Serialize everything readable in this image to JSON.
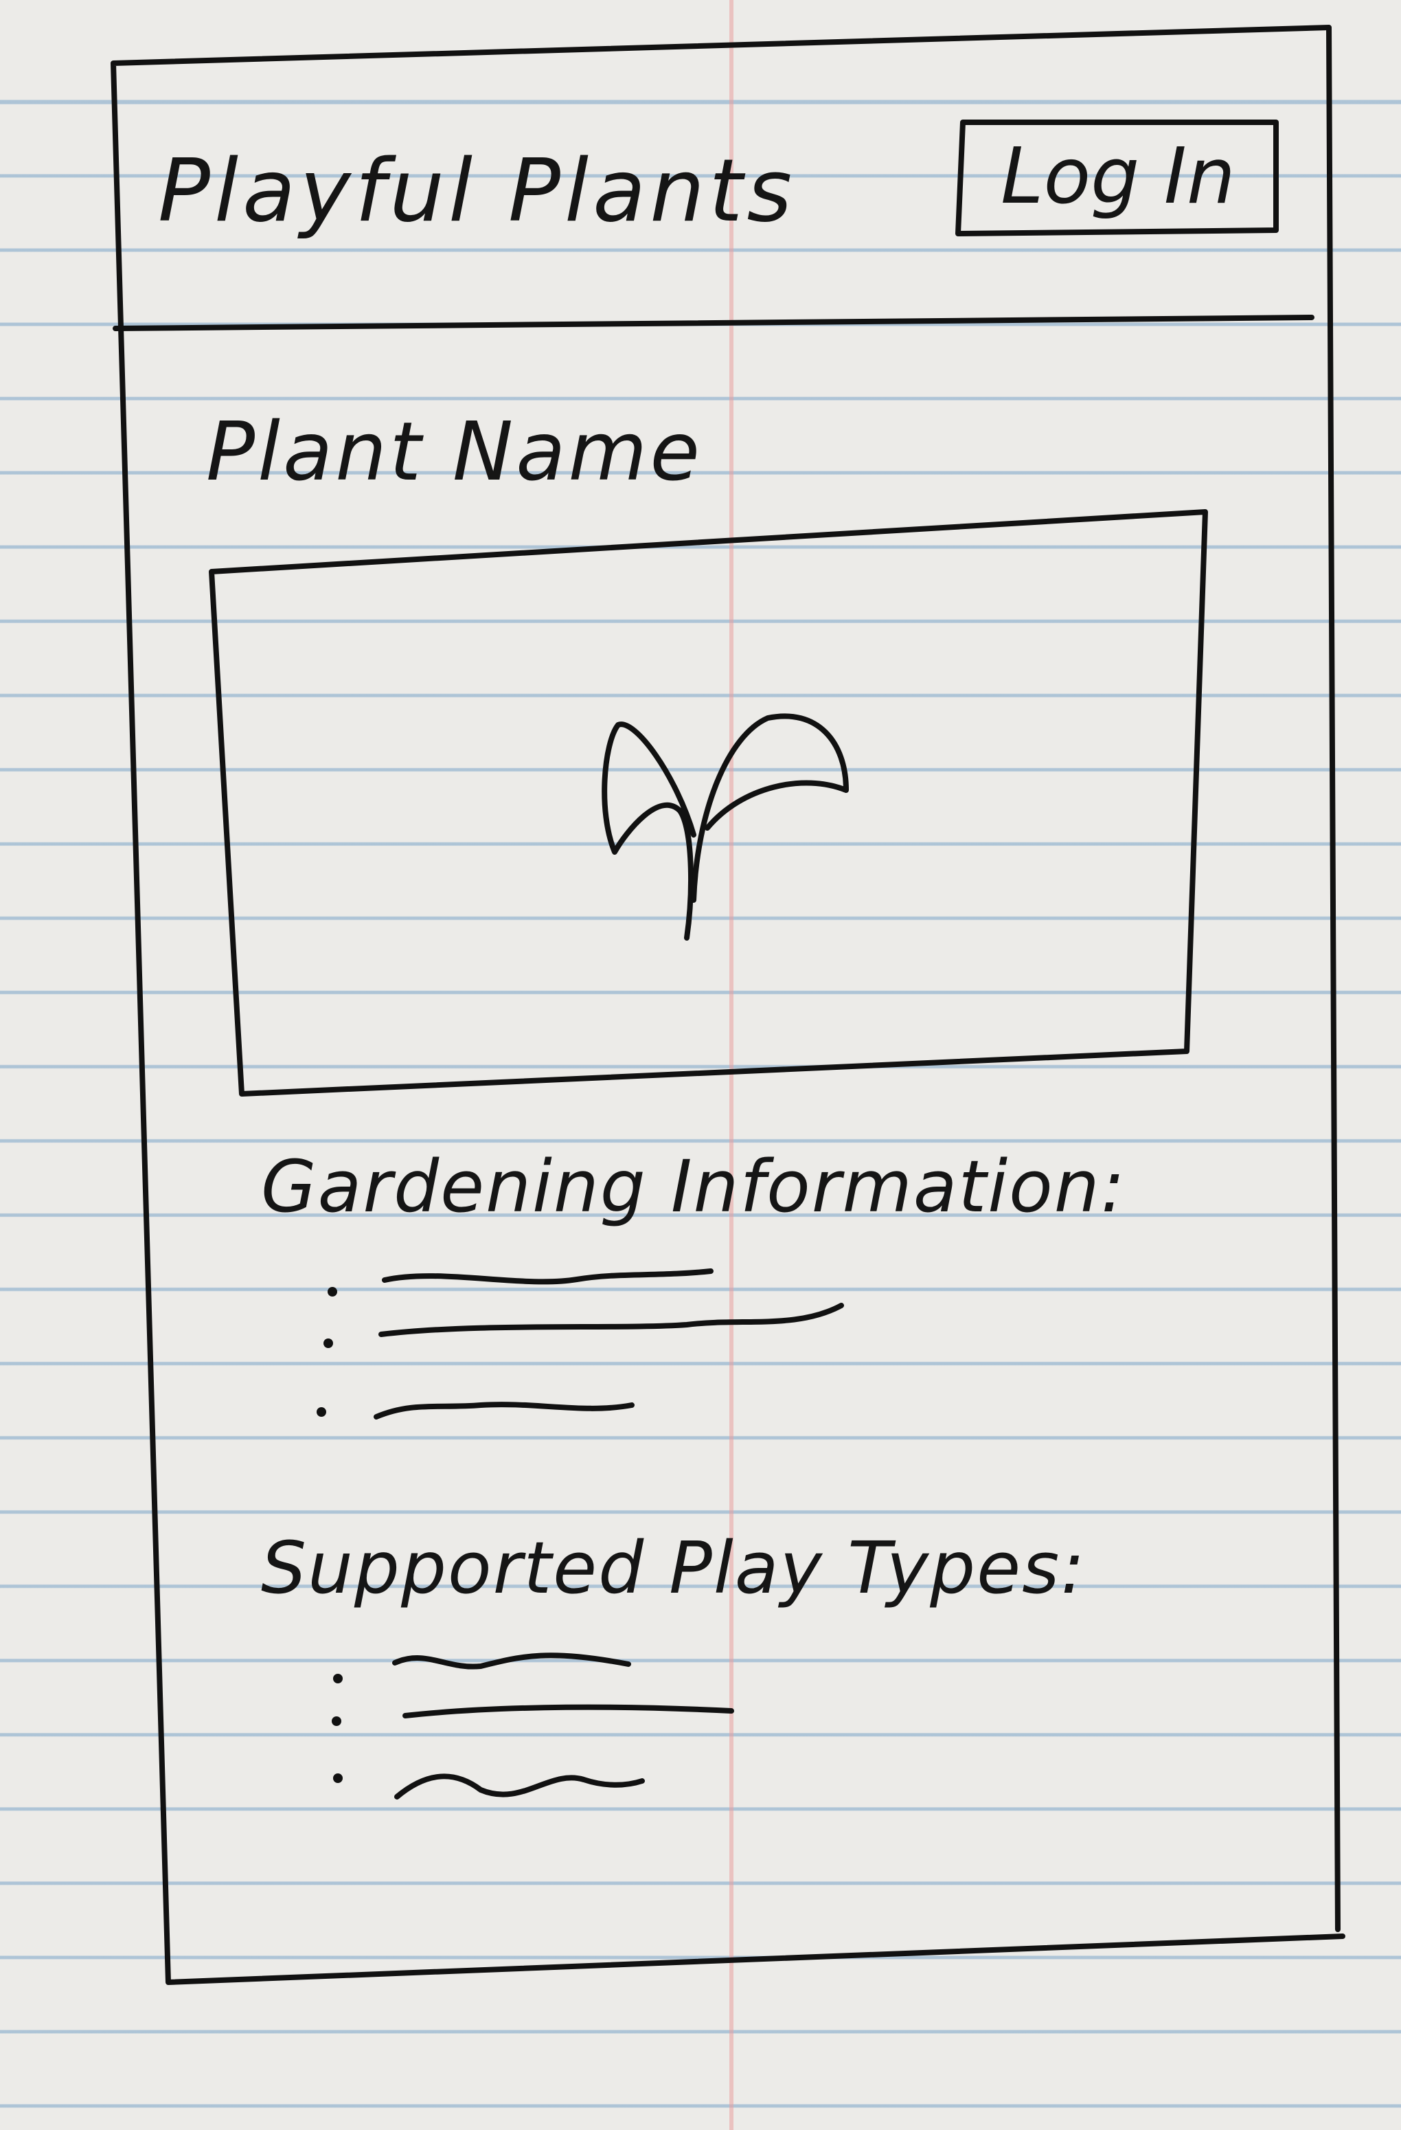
{
  "app": {
    "title": "Playful Plants"
  },
  "header": {
    "login_label": "Log In"
  },
  "plant": {
    "name_label": "Plant Name",
    "image_icon": "sprout-icon"
  },
  "gardening": {
    "heading": "Gardening Information:",
    "items_count": 3
  },
  "play_types": {
    "heading": "Supported Play Types:",
    "items_count": 3
  },
  "colors": {
    "ink": "#111111",
    "paper": "#ecebe8",
    "rule_line": "#8cafcd",
    "margin_line": "#e8a0a0"
  }
}
